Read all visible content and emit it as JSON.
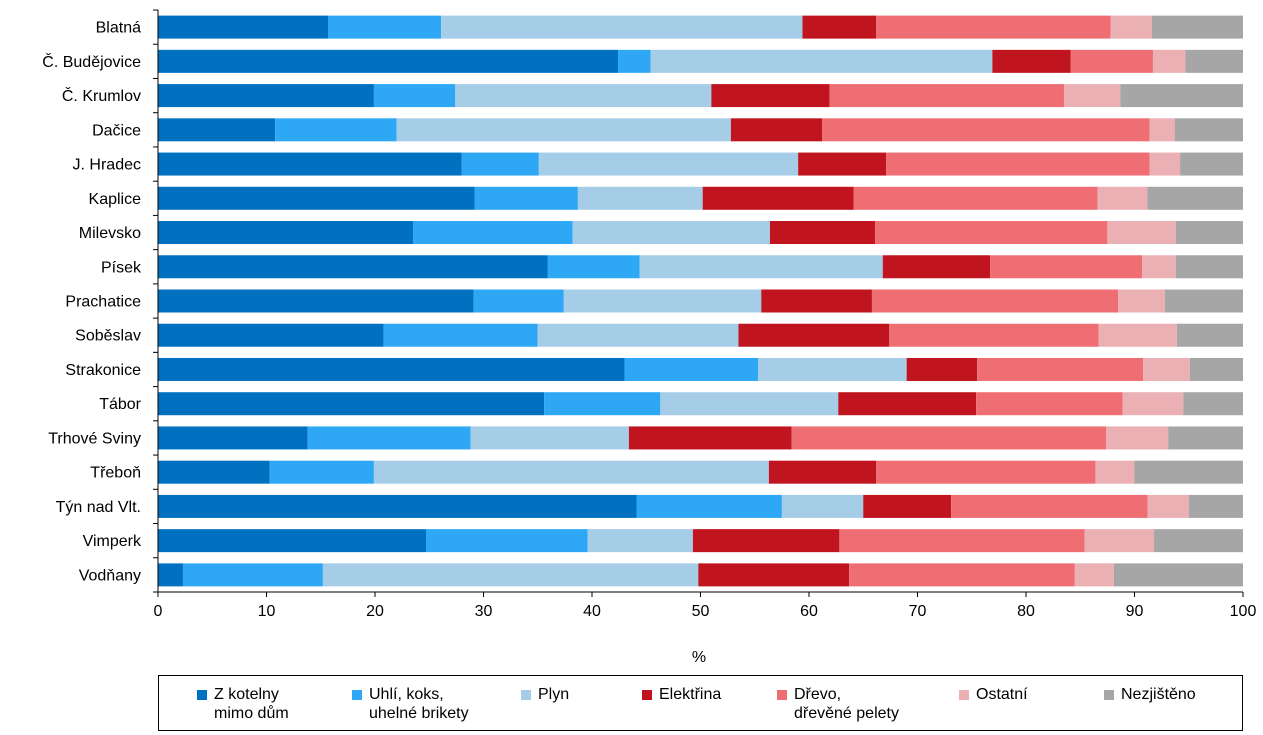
{
  "chart_data": {
    "type": "bar",
    "orientation": "horizontal",
    "stacked": true,
    "title": "",
    "xlabel": "%",
    "ylabel": "",
    "xlim": [
      0,
      100
    ],
    "xticks": [
      "0",
      "10",
      "20",
      "30",
      "40",
      "50",
      "60",
      "70",
      "80",
      "90",
      "100"
    ],
    "grid": false,
    "legend_position": "bottom",
    "categories": [
      "Blatná",
      "Č. Budějovice",
      "Č. Krumlov",
      "Dačice",
      "J. Hradec",
      "Kaplice",
      "Milevsko",
      "Písek",
      "Prachatice",
      "Soběslav",
      "Strakonice",
      "Tábor",
      "Trhové Sviny",
      "Třeboň",
      "Týn nad Vlt.",
      "Vimperk",
      "Vodňany"
    ],
    "series": [
      {
        "name": "Z kotelny mimo dům",
        "label_lines": [
          "Z kotelny",
          "mimo dům"
        ],
        "color": "#0070c0",
        "values": [
          15.7,
          42.4,
          19.9,
          10.8,
          28.0,
          29.2,
          23.5,
          35.9,
          29.1,
          20.8,
          43.0,
          35.6,
          13.8,
          10.3,
          44.1,
          24.7,
          2.3
        ]
      },
      {
        "name": "Uhlí, koks, uhelné brikety",
        "label_lines": [
          "Uhlí, koks,",
          "uhelné brikety"
        ],
        "color": "#2ea8f5",
        "values": [
          10.4,
          3.0,
          7.5,
          11.2,
          7.1,
          9.5,
          14.7,
          8.5,
          8.3,
          14.2,
          12.3,
          10.7,
          15.0,
          9.6,
          13.4,
          14.9,
          12.9
        ]
      },
      {
        "name": "Plyn",
        "label_lines": [
          "Plyn"
        ],
        "color": "#a6cde8",
        "values": [
          33.3,
          31.5,
          23.6,
          30.8,
          23.9,
          11.5,
          18.2,
          22.4,
          18.2,
          18.5,
          13.7,
          16.4,
          14.6,
          36.4,
          7.5,
          9.7,
          34.6
        ]
      },
      {
        "name": "Elektřina",
        "label_lines": [
          "Elektřina"
        ],
        "color": "#c0141e",
        "values": [
          6.8,
          7.2,
          10.9,
          8.4,
          8.1,
          13.9,
          9.7,
          9.9,
          10.2,
          13.9,
          6.5,
          12.7,
          15.0,
          9.9,
          8.1,
          13.5,
          13.9
        ]
      },
      {
        "name": "Dřevo, dřevěné pelety",
        "label_lines": [
          "Dřevo,",
          "dřevěné pelety"
        ],
        "color": "#ee6e73",
        "values": [
          21.6,
          7.6,
          21.6,
          30.2,
          24.3,
          22.5,
          21.4,
          14.0,
          22.7,
          19.3,
          15.3,
          13.5,
          29.0,
          20.2,
          18.1,
          22.6,
          20.8
        ]
      },
      {
        "name": "Ostatní",
        "label_lines": [
          "Ostatní"
        ],
        "color": "#eab0b3",
        "values": [
          3.8,
          3.0,
          5.2,
          2.3,
          2.8,
          4.6,
          6.3,
          3.1,
          4.3,
          7.2,
          4.3,
          5.6,
          5.7,
          3.6,
          3.8,
          6.4,
          3.6
        ]
      },
      {
        "name": "Nezjištěno",
        "label_lines": [
          "Nezjištěno"
        ],
        "color": "#a6a6a6",
        "values": [
          8.4,
          5.3,
          11.3,
          6.3,
          5.8,
          8.8,
          6.2,
          6.2,
          7.2,
          6.1,
          4.9,
          5.5,
          6.9,
          10.0,
          5.0,
          8.2,
          11.9
        ]
      }
    ]
  }
}
